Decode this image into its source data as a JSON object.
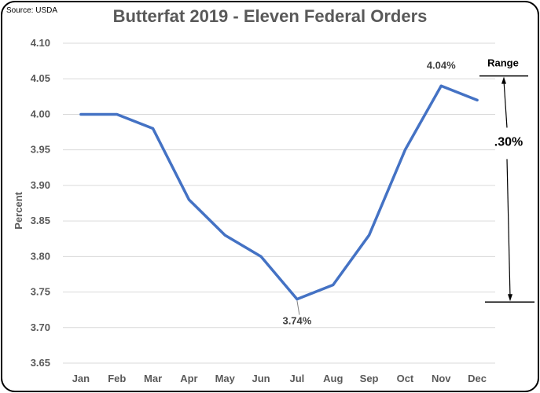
{
  "source": "Source: USDA",
  "chart_data": {
    "type": "line",
    "title": "Butterfat 2019 - Eleven Federal Orders",
    "xlabel": "",
    "ylabel": "Percent",
    "categories": [
      "Jan",
      "Feb",
      "Mar",
      "Apr",
      "May",
      "Jun",
      "Jul",
      "Aug",
      "Sep",
      "Oct",
      "Nov",
      "Dec"
    ],
    "series": [
      {
        "name": "Butterfat",
        "color": "#4472c4",
        "values": [
          4.0,
          4.0,
          3.98,
          3.88,
          3.83,
          3.8,
          3.74,
          3.76,
          3.83,
          3.95,
          4.04,
          4.02
        ]
      }
    ],
    "ylim": [
      3.65,
      4.1
    ],
    "yticks": [
      "3.65",
      "3.70",
      "3.75",
      "3.80",
      "3.85",
      "3.90",
      "3.95",
      "4.00",
      "4.05",
      "4.10"
    ],
    "grid": true,
    "annotations": [
      {
        "text": "4.04%",
        "category": "Nov",
        "value": 4.04
      },
      {
        "text": "3.74%",
        "category": "Jul",
        "value": 3.74
      }
    ],
    "range": {
      "label": "Range",
      "value_label": ".30%",
      "top": 4.054,
      "bottom": 3.736
    }
  }
}
